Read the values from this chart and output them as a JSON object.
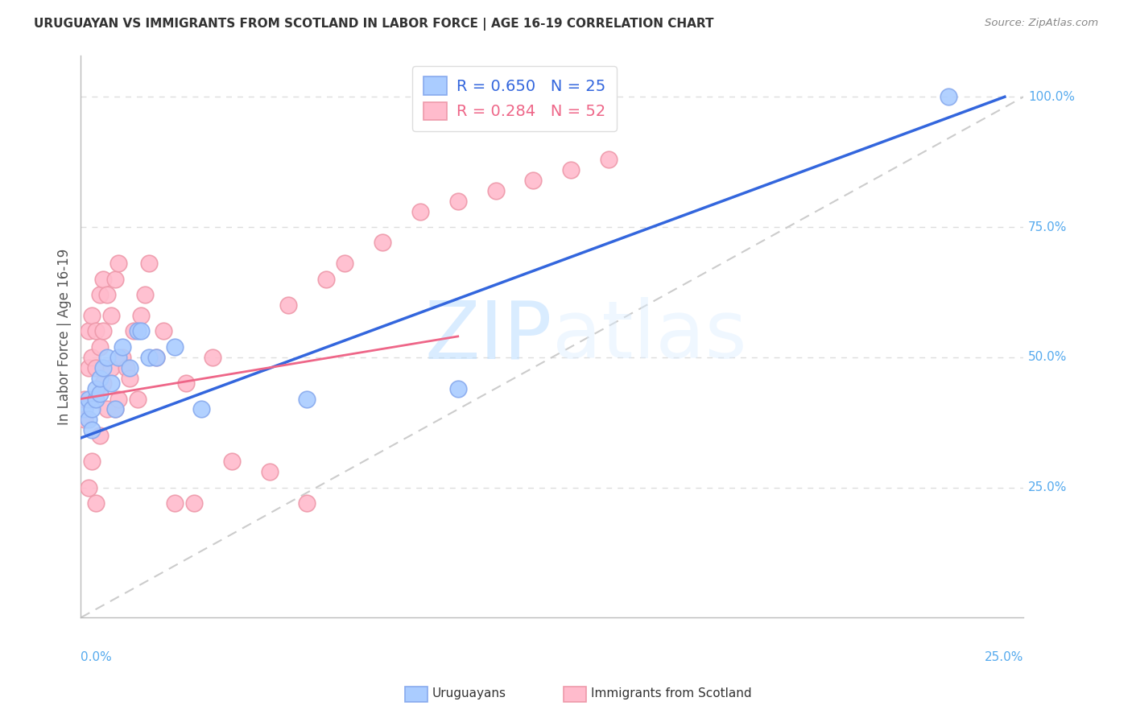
{
  "title": "URUGUAYAN VS IMMIGRANTS FROM SCOTLAND IN LABOR FORCE | AGE 16-19 CORRELATION CHART",
  "source": "Source: ZipAtlas.com",
  "ylabel": "In Labor Force | Age 16-19",
  "xlim": [
    0.0,
    0.25
  ],
  "ylim": [
    0.0,
    1.08
  ],
  "legend_blue_R": 0.65,
  "legend_blue_N": 25,
  "legend_pink_R": 0.284,
  "legend_pink_N": 52,
  "grid_color": "#dddddd",
  "background_color": "#ffffff",
  "axis_color": "#55aaee",
  "blue_scatter_color": "#aaccff",
  "blue_edge_color": "#88aaee",
  "pink_scatter_color": "#ffbbcc",
  "pink_edge_color": "#ee99aa",
  "blue_line_color": "#3366dd",
  "pink_line_color": "#ee6688",
  "diagonal_color": "#cccccc",
  "blue_line_x": [
    0.0,
    0.245
  ],
  "blue_line_y": [
    0.345,
    1.0
  ],
  "pink_line_x": [
    0.0,
    0.1
  ],
  "pink_line_y": [
    0.42,
    0.54
  ],
  "blue_x": [
    0.001,
    0.002,
    0.002,
    0.003,
    0.003,
    0.004,
    0.004,
    0.005,
    0.005,
    0.006,
    0.007,
    0.008,
    0.009,
    0.01,
    0.011,
    0.013,
    0.015,
    0.016,
    0.018,
    0.02,
    0.025,
    0.032,
    0.06,
    0.1,
    0.23
  ],
  "blue_y": [
    0.4,
    0.38,
    0.42,
    0.36,
    0.4,
    0.42,
    0.44,
    0.43,
    0.46,
    0.48,
    0.5,
    0.45,
    0.4,
    0.5,
    0.52,
    0.48,
    0.55,
    0.55,
    0.5,
    0.5,
    0.52,
    0.4,
    0.42,
    0.44,
    1.0
  ],
  "pink_x": [
    0.001,
    0.001,
    0.002,
    0.002,
    0.002,
    0.003,
    0.003,
    0.003,
    0.004,
    0.004,
    0.004,
    0.005,
    0.005,
    0.005,
    0.006,
    0.006,
    0.006,
    0.007,
    0.007,
    0.008,
    0.008,
    0.009,
    0.009,
    0.01,
    0.01,
    0.011,
    0.012,
    0.013,
    0.014,
    0.015,
    0.016,
    0.017,
    0.018,
    0.02,
    0.022,
    0.025,
    0.028,
    0.03,
    0.035,
    0.04,
    0.05,
    0.055,
    0.06,
    0.065,
    0.07,
    0.08,
    0.09,
    0.1,
    0.11,
    0.12,
    0.13,
    0.14
  ],
  "pink_y": [
    0.38,
    0.42,
    0.25,
    0.48,
    0.55,
    0.3,
    0.5,
    0.58,
    0.22,
    0.48,
    0.55,
    0.35,
    0.52,
    0.62,
    0.45,
    0.55,
    0.65,
    0.4,
    0.62,
    0.48,
    0.58,
    0.4,
    0.65,
    0.42,
    0.68,
    0.5,
    0.48,
    0.46,
    0.55,
    0.42,
    0.58,
    0.62,
    0.68,
    0.5,
    0.55,
    0.22,
    0.45,
    0.22,
    0.5,
    0.3,
    0.28,
    0.6,
    0.22,
    0.65,
    0.68,
    0.72,
    0.78,
    0.8,
    0.82,
    0.84,
    0.86,
    0.88
  ],
  "watermark_zip": "ZIP",
  "watermark_atlas": "atlas",
  "watermark_color": "#ddeeff"
}
